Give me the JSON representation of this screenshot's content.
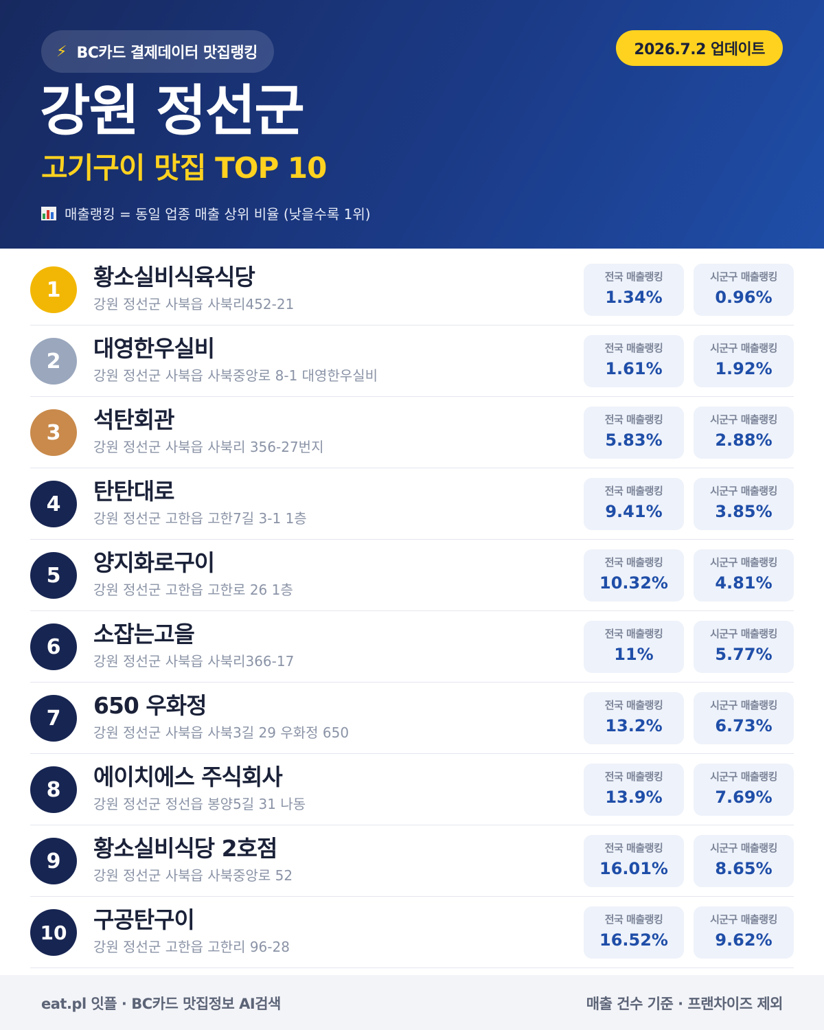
{
  "header": {
    "source_label": "BC카드 결제데이터 맛집랭킹",
    "update_label": "2026.7.2 업데이트",
    "region": "강원 정선군",
    "subtitle": "고기구이 맛집 TOP 10",
    "legend": "매출랭킹 = 동일 업종 매출 상위 비율 (낮을수록 1위)",
    "icons": {
      "source": "lightning-bolt-icon",
      "legend": "bar-chart-icon"
    }
  },
  "stat_labels": {
    "national": "전국 매출랭킹",
    "local": "시군구 매출랭킹"
  },
  "colors": {
    "accent_yellow": "#ffd21f",
    "header_navy": "#17295f",
    "value_blue": "#1f4ea8",
    "rank_gold": "#f2b705",
    "rank_silver": "#9aa7bd",
    "rank_bronze": "#c98a4b",
    "rank_default": "#172552"
  },
  "restaurants": [
    {
      "rank": "1",
      "name": "황소실비식육식당",
      "address": "강원 정선군 사북읍 사북리452-21",
      "national": "1.34%",
      "local": "0.96%"
    },
    {
      "rank": "2",
      "name": "대영한우실비",
      "address": "강원 정선군 사북읍 사북중앙로 8-1 대영한우실비",
      "national": "1.61%",
      "local": "1.92%"
    },
    {
      "rank": "3",
      "name": "석탄회관",
      "address": "강원 정선군 사북읍 사북리 356-27번지",
      "national": "5.83%",
      "local": "2.88%"
    },
    {
      "rank": "4",
      "name": "탄탄대로",
      "address": "강원 정선군 고한읍 고한7길 3-1 1층",
      "national": "9.41%",
      "local": "3.85%"
    },
    {
      "rank": "5",
      "name": "양지화로구이",
      "address": "강원 정선군 고한읍 고한로 26 1층",
      "national": "10.32%",
      "local": "4.81%"
    },
    {
      "rank": "6",
      "name": "소잡는고을",
      "address": "강원 정선군 사북읍 사북리366-17",
      "national": "11%",
      "local": "5.77%"
    },
    {
      "rank": "7",
      "name": "650 우화정",
      "address": "강원 정선군 사북읍 사북3길 29 우화정 650",
      "national": "13.2%",
      "local": "6.73%"
    },
    {
      "rank": "8",
      "name": "에이치에스 주식회사",
      "address": "강원 정선군 정선읍 봉양5길 31 나동",
      "national": "13.9%",
      "local": "7.69%"
    },
    {
      "rank": "9",
      "name": "황소실비식당 2호점",
      "address": "강원 정선군 사북읍 사북중앙로 52",
      "national": "16.01%",
      "local": "8.65%"
    },
    {
      "rank": "10",
      "name": "구공탄구이",
      "address": "강원 정선군 고한읍 고한리 96-28",
      "national": "16.52%",
      "local": "9.62%"
    }
  ],
  "footer": {
    "left": "eat.pl 잇플 · BC카드 맛집정보 AI검색",
    "right": "매출 건수 기준 · 프랜차이즈 제외"
  }
}
